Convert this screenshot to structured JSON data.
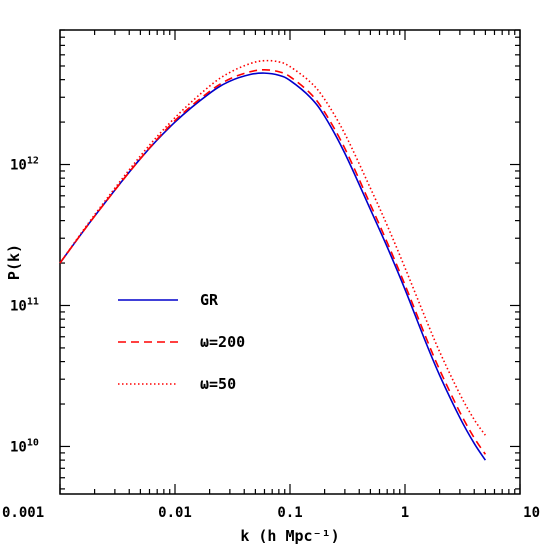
{
  "chart_data": {
    "type": "line",
    "xlabel": "k (h Mpc⁻¹)",
    "ylabel": "P(k)",
    "xscale": "log",
    "yscale": "log",
    "xlim": [
      0.001,
      10
    ],
    "ylim": [
      4600000000.0,
      9000000000000.0
    ],
    "x_tick_labels": [
      "0.001",
      "0.01",
      "0.1",
      "1",
      "10"
    ],
    "y_tick_labels": [
      {
        "value": 10000000000.0,
        "mantissa": "10",
        "exponent": "10"
      },
      {
        "value": 100000000000.0,
        "mantissa": "10",
        "exponent": "11"
      },
      {
        "value": 1000000000000.0,
        "mantissa": "10",
        "exponent": "12"
      }
    ],
    "legend_position": "center-left",
    "grid": false,
    "series": [
      {
        "name": "GR",
        "color": "#0000cc",
        "style": "solid",
        "x": [
          0.001,
          0.002,
          0.005,
          0.01,
          0.02,
          0.03,
          0.045,
          0.06,
          0.08,
          0.1,
          0.15,
          0.2,
          0.3,
          0.5,
          0.7,
          1.0,
          1.5,
          2.0,
          3.0,
          4.0,
          5.0
        ],
        "y": [
          200000000000.0,
          430000000000.0,
          1100000000000.0,
          2000000000000.0,
          3200000000000.0,
          3900000000000.0,
          4350000000000.0,
          4450000000000.0,
          4300000000000.0,
          3950000000000.0,
          3000000000000.0,
          2200000000000.0,
          1200000000000.0,
          480000000000.0,
          260000000000.0,
          130000000000.0,
          56000000000.0,
          32000000000.0,
          16000000000.0,
          10500000000.0,
          8000000000.0
        ]
      },
      {
        "name": "ω=200",
        "color": "#ff0000",
        "style": "dashed",
        "x": [
          0.001,
          0.002,
          0.005,
          0.01,
          0.02,
          0.03,
          0.045,
          0.06,
          0.08,
          0.1,
          0.15,
          0.2,
          0.3,
          0.5,
          0.7,
          1.0,
          1.5,
          2.0,
          3.0,
          4.0,
          5.0
        ],
        "y": [
          200000000000.0,
          430000000000.0,
          1100000000000.0,
          2050000000000.0,
          3300000000000.0,
          4050000000000.0,
          4550000000000.0,
          4700000000000.0,
          4550000000000.0,
          4200000000000.0,
          3200000000000.0,
          2350000000000.0,
          1300000000000.0,
          520000000000.0,
          280000000000.0,
          140000000000.0,
          61000000000.0,
          35000000000.0,
          17500000000.0,
          11500000000.0,
          8800000000.0
        ]
      },
      {
        "name": "ω=50",
        "color": "#ff0000",
        "style": "dotted",
        "x": [
          0.001,
          0.002,
          0.005,
          0.01,
          0.02,
          0.03,
          0.045,
          0.06,
          0.08,
          0.1,
          0.15,
          0.2,
          0.3,
          0.5,
          0.7,
          1.0,
          1.5,
          2.0,
          3.0,
          4.0,
          5.0
        ],
        "y": [
          200000000000.0,
          440000000000.0,
          1150000000000.0,
          2150000000000.0,
          3600000000000.0,
          4500000000000.0,
          5200000000000.0,
          5450000000000.0,
          5350000000000.0,
          4950000000000.0,
          3850000000000.0,
          2900000000000.0,
          1650000000000.0,
          680000000000.0,
          370000000000.0,
          185000000000.0,
          82000000000.0,
          47000000000.0,
          23500000000.0,
          15500000000.0,
          12000000000.0
        ]
      }
    ]
  }
}
